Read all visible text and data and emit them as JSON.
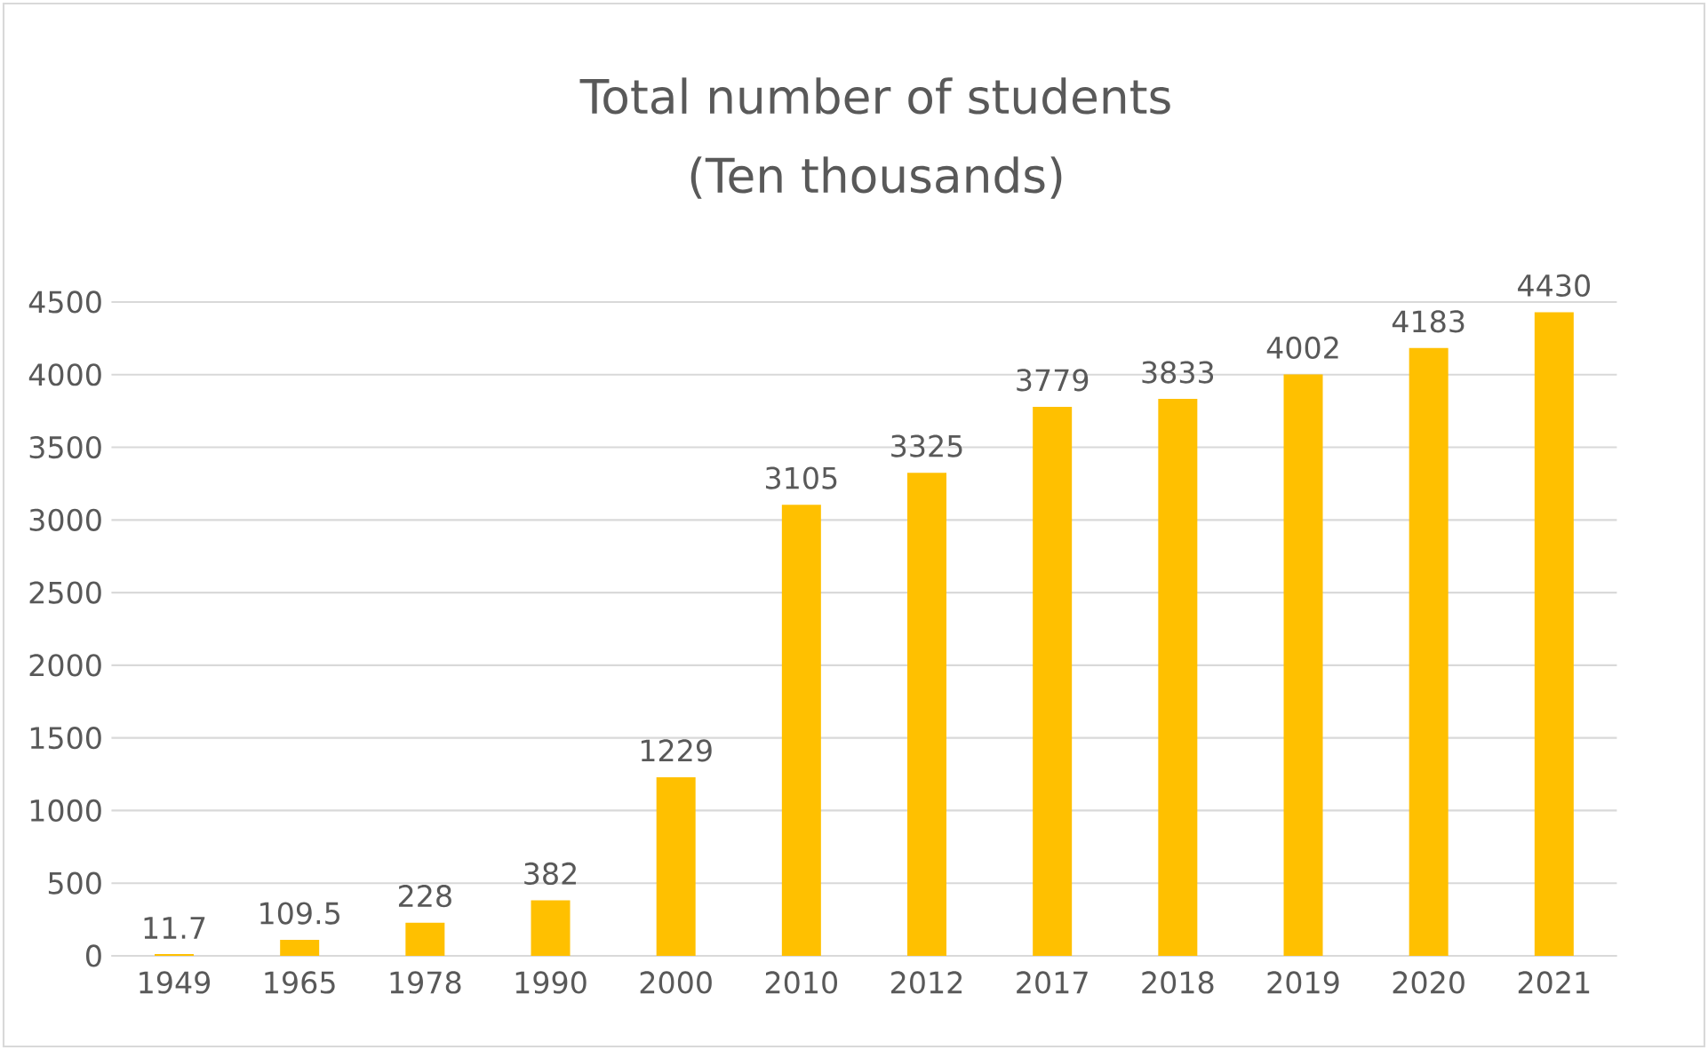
{
  "chart_data": {
    "type": "bar",
    "title": "Total number of students",
    "subtitle": "(Ten thousands)",
    "categories": [
      "1949",
      "1965",
      "1978",
      "1990",
      "2000",
      "2010",
      "2012",
      "2017",
      "2018",
      "2019",
      "2020",
      "2021"
    ],
    "values": [
      11.7,
      109.5,
      228,
      382,
      1229,
      3105,
      3325,
      3779,
      3833,
      4002,
      4183,
      4430
    ],
    "color": "#ffc000",
    "ylim": [
      0,
      4500
    ],
    "yticks": [
      0,
      500,
      1000,
      1500,
      2000,
      2500,
      3000,
      3500,
      4000,
      4500
    ],
    "grid": "y",
    "data_labels": true
  }
}
